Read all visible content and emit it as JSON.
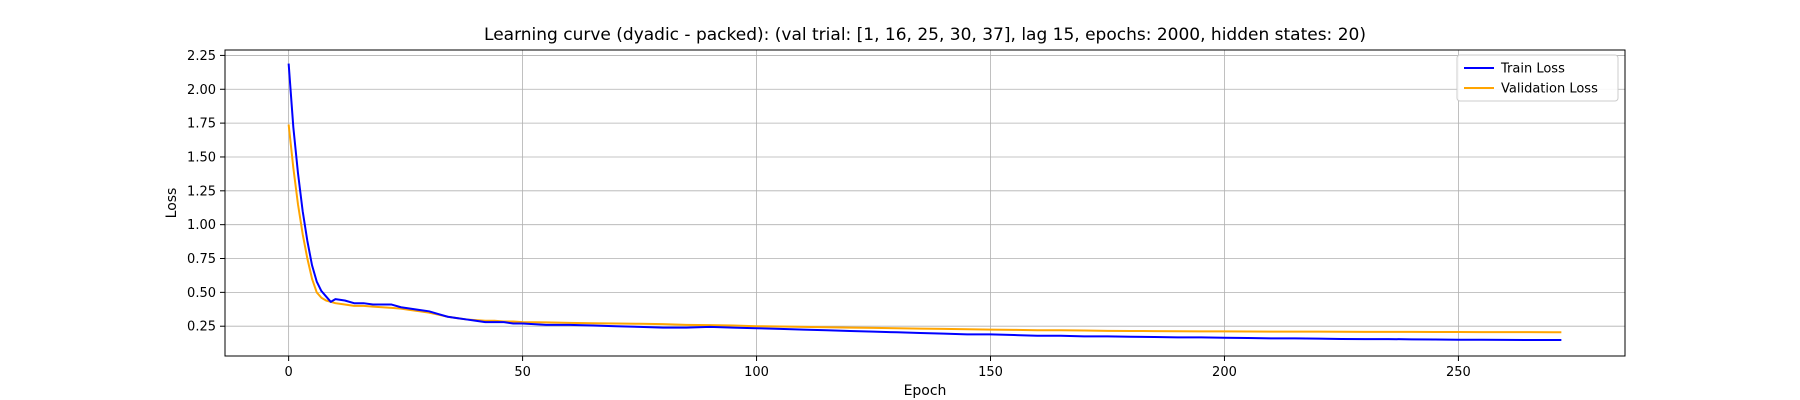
{
  "chart_data": {
    "type": "line",
    "title": "Learning curve (dyadic - packed): (val trial: [1, 16, 25, 30, 37], lag 15, epochs: 2000, hidden states: 20)",
    "xlabel": "Epoch",
    "ylabel": "Loss",
    "xlim": [
      -13.6,
      285.6
    ],
    "ylim": [
      0.03,
      2.29
    ],
    "xticks": [
      0,
      50,
      100,
      150,
      200,
      250
    ],
    "yticks": [
      0.25,
      0.5,
      0.75,
      1.0,
      1.25,
      1.5,
      1.75,
      2.0,
      2.25
    ],
    "ytick_labels": [
      "0.25",
      "0.50",
      "0.75",
      "1.00",
      "1.25",
      "1.50",
      "1.75",
      "2.00",
      "2.25"
    ],
    "grid": true,
    "legend_position": "upper right",
    "series": [
      {
        "name": "Train Loss",
        "color": "#0000ff",
        "points": [
          [
            0,
            2.19
          ],
          [
            1,
            1.72
          ],
          [
            2,
            1.38
          ],
          [
            3,
            1.1
          ],
          [
            4,
            0.88
          ],
          [
            5,
            0.7
          ],
          [
            6,
            0.58
          ],
          [
            7,
            0.51
          ],
          [
            8,
            0.47
          ],
          [
            9,
            0.43
          ],
          [
            10,
            0.45
          ],
          [
            12,
            0.44
          ],
          [
            14,
            0.42
          ],
          [
            16,
            0.42
          ],
          [
            18,
            0.41
          ],
          [
            20,
            0.41
          ],
          [
            22,
            0.41
          ],
          [
            24,
            0.39
          ],
          [
            26,
            0.38
          ],
          [
            28,
            0.37
          ],
          [
            30,
            0.36
          ],
          [
            32,
            0.34
          ],
          [
            34,
            0.32
          ],
          [
            36,
            0.31
          ],
          [
            38,
            0.3
          ],
          [
            40,
            0.29
          ],
          [
            42,
            0.28
          ],
          [
            44,
            0.28
          ],
          [
            46,
            0.28
          ],
          [
            48,
            0.27
          ],
          [
            50,
            0.27
          ],
          [
            55,
            0.26
          ],
          [
            60,
            0.26
          ],
          [
            65,
            0.255
          ],
          [
            70,
            0.25
          ],
          [
            75,
            0.245
          ],
          [
            80,
            0.24
          ],
          [
            85,
            0.24
          ],
          [
            90,
            0.245
          ],
          [
            95,
            0.24
          ],
          [
            100,
            0.235
          ],
          [
            105,
            0.23
          ],
          [
            110,
            0.225
          ],
          [
            115,
            0.22
          ],
          [
            120,
            0.215
          ],
          [
            125,
            0.21
          ],
          [
            130,
            0.205
          ],
          [
            135,
            0.2
          ],
          [
            140,
            0.195
          ],
          [
            145,
            0.19
          ],
          [
            150,
            0.19
          ],
          [
            155,
            0.185
          ],
          [
            160,
            0.18
          ],
          [
            165,
            0.18
          ],
          [
            170,
            0.175
          ],
          [
            175,
            0.175
          ],
          [
            180,
            0.172
          ],
          [
            185,
            0.17
          ],
          [
            190,
            0.168
          ],
          [
            195,
            0.168
          ],
          [
            200,
            0.165
          ],
          [
            205,
            0.163
          ],
          [
            210,
            0.16
          ],
          [
            215,
            0.16
          ],
          [
            220,
            0.158
          ],
          [
            225,
            0.156
          ],
          [
            230,
            0.155
          ],
          [
            235,
            0.155
          ],
          [
            240,
            0.153
          ],
          [
            245,
            0.152
          ],
          [
            250,
            0.15
          ],
          [
            255,
            0.15
          ],
          [
            260,
            0.149
          ],
          [
            265,
            0.148
          ],
          [
            270,
            0.148
          ],
          [
            272,
            0.148
          ]
        ]
      },
      {
        "name": "Validation Loss",
        "color": "#ffa500",
        "points": [
          [
            0,
            1.74
          ],
          [
            1,
            1.42
          ],
          [
            2,
            1.15
          ],
          [
            3,
            0.93
          ],
          [
            4,
            0.75
          ],
          [
            5,
            0.6
          ],
          [
            6,
            0.5
          ],
          [
            7,
            0.46
          ],
          [
            8,
            0.44
          ],
          [
            9,
            0.43
          ],
          [
            10,
            0.42
          ],
          [
            12,
            0.41
          ],
          [
            14,
            0.4
          ],
          [
            16,
            0.4
          ],
          [
            18,
            0.395
          ],
          [
            20,
            0.39
          ],
          [
            22,
            0.385
          ],
          [
            24,
            0.38
          ],
          [
            26,
            0.37
          ],
          [
            28,
            0.36
          ],
          [
            30,
            0.35
          ],
          [
            32,
            0.335
          ],
          [
            34,
            0.32
          ],
          [
            36,
            0.31
          ],
          [
            38,
            0.3
          ],
          [
            40,
            0.295
          ],
          [
            42,
            0.29
          ],
          [
            44,
            0.29
          ],
          [
            46,
            0.285
          ],
          [
            48,
            0.285
          ],
          [
            50,
            0.28
          ],
          [
            55,
            0.278
          ],
          [
            60,
            0.275
          ],
          [
            65,
            0.272
          ],
          [
            70,
            0.27
          ],
          [
            75,
            0.268
          ],
          [
            80,
            0.265
          ],
          [
            85,
            0.26
          ],
          [
            90,
            0.258
          ],
          [
            95,
            0.255
          ],
          [
            100,
            0.25
          ],
          [
            105,
            0.248
          ],
          [
            110,
            0.245
          ],
          [
            115,
            0.242
          ],
          [
            120,
            0.24
          ],
          [
            125,
            0.238
          ],
          [
            130,
            0.235
          ],
          [
            135,
            0.232
          ],
          [
            140,
            0.23
          ],
          [
            145,
            0.228
          ],
          [
            150,
            0.225
          ],
          [
            155,
            0.223
          ],
          [
            160,
            0.22
          ],
          [
            165,
            0.22
          ],
          [
            170,
            0.218
          ],
          [
            175,
            0.216
          ],
          [
            180,
            0.215
          ],
          [
            185,
            0.214
          ],
          [
            190,
            0.213
          ],
          [
            195,
            0.212
          ],
          [
            200,
            0.212
          ],
          [
            205,
            0.211
          ],
          [
            210,
            0.21
          ],
          [
            215,
            0.21
          ],
          [
            220,
            0.21
          ],
          [
            225,
            0.209
          ],
          [
            230,
            0.208
          ],
          [
            235,
            0.208
          ],
          [
            240,
            0.208
          ],
          [
            245,
            0.207
          ],
          [
            250,
            0.207
          ],
          [
            255,
            0.206
          ],
          [
            260,
            0.206
          ],
          [
            265,
            0.206
          ],
          [
            270,
            0.205
          ],
          [
            272,
            0.205
          ]
        ]
      }
    ]
  }
}
